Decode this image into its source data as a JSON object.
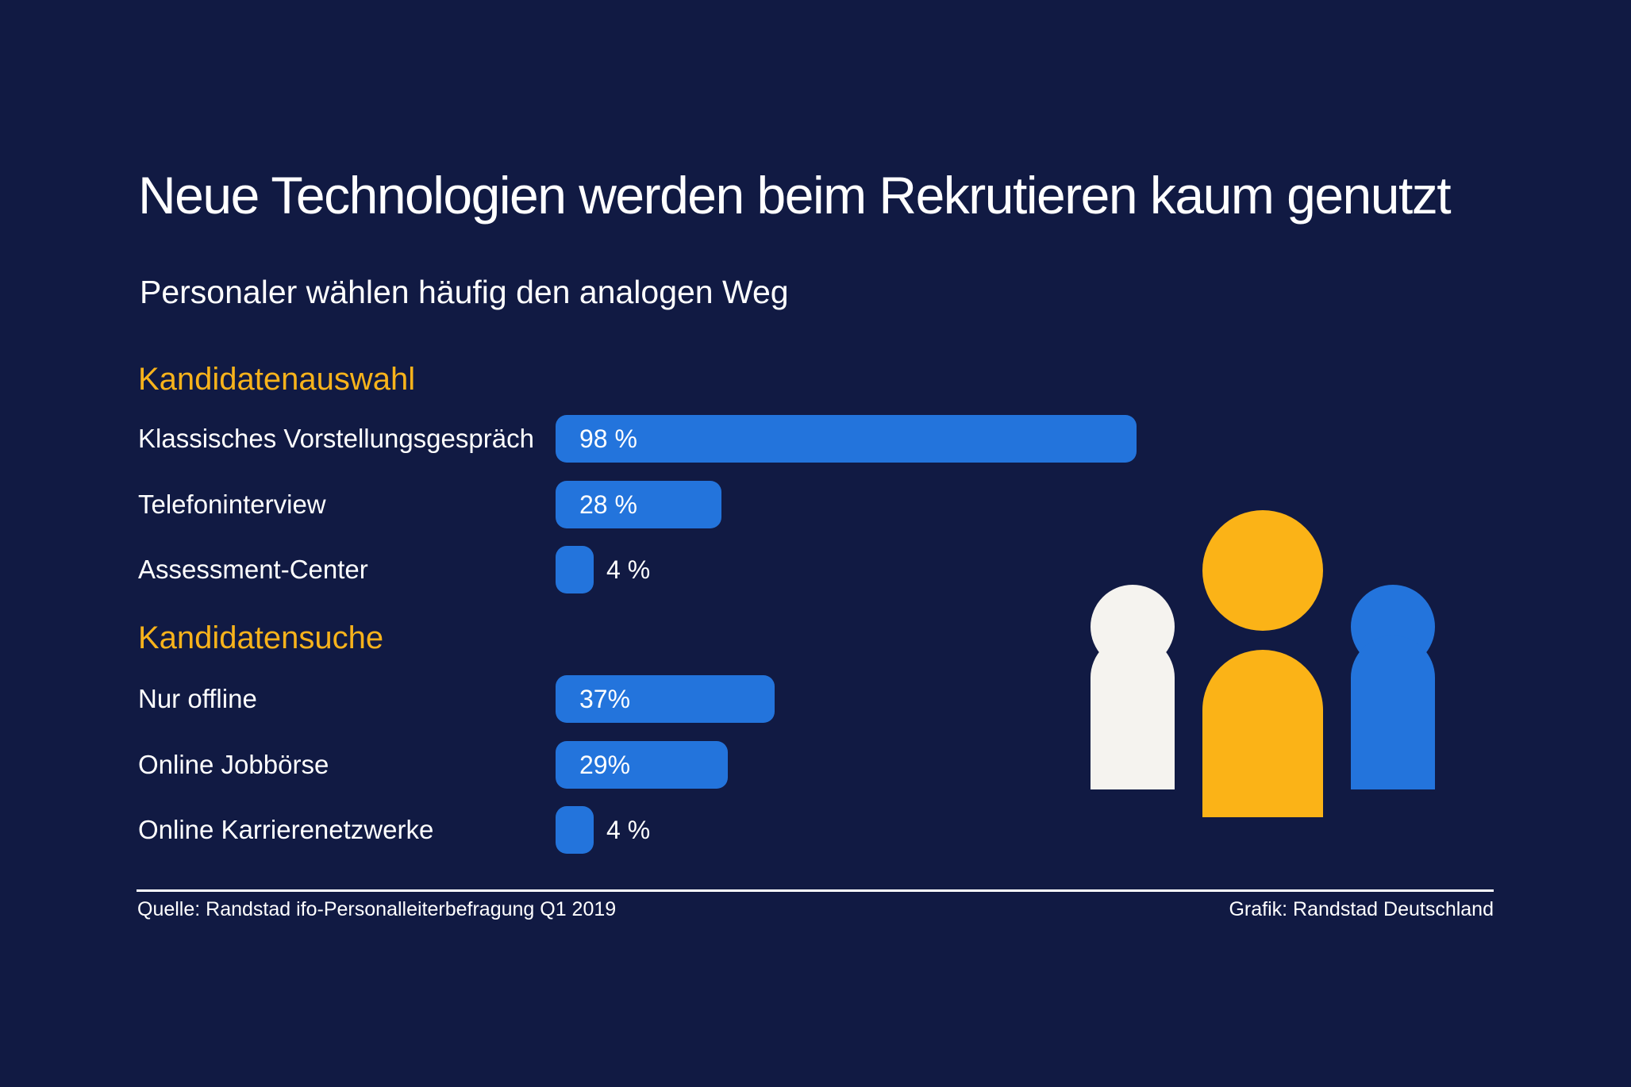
{
  "chart_data": {
    "type": "bar",
    "orientation": "horizontal",
    "title": "Neue Technologien werden beim Rekrutieren kaum genutzt",
    "subtitle": "Personaler wählen häufig den analogen Weg",
    "xlim": [
      0,
      100
    ],
    "value_suffix": "%",
    "groups": [
      {
        "name": "Kandidatenauswahl",
        "items": [
          {
            "label": "Klassisches Vorstellungsgespräch",
            "value": 98,
            "display": "98 %"
          },
          {
            "label": "Telefoninterview",
            "value": 28,
            "display": "28 %"
          },
          {
            "label": "Assessment-Center",
            "value": 4,
            "display": "4 %"
          }
        ]
      },
      {
        "name": "Kandidatensuche",
        "items": [
          {
            "label": "Nur offline",
            "value": 37,
            "display": "37%"
          },
          {
            "label": "Online Jobbörse",
            "value": 29,
            "display": "29%"
          },
          {
            "label": "Online Karrierenetzwerke",
            "value": 4,
            "display": "4 %"
          }
        ]
      }
    ]
  },
  "footer": {
    "source": "Quelle: Randstad ifo-Personalleiterbefragung Q1 2019",
    "credit": "Grafik: Randstad Deutschland"
  },
  "illustration": {
    "icon": "people-group-icon",
    "figures": [
      "person-white-icon",
      "person-yellow-icon",
      "person-blue-icon"
    ]
  },
  "colors": {
    "background": "#111a43",
    "bar": "#2374dc",
    "group_title": "#f8b31b",
    "text": "#ffffff",
    "person_white": "#f5f3ef",
    "person_yellow": "#fbb317",
    "person_blue": "#2374dc"
  }
}
